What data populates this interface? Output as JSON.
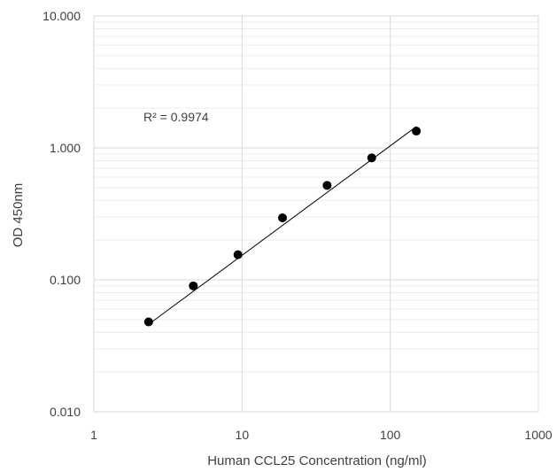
{
  "chart_data": {
    "type": "scatter",
    "title": "",
    "xlabel": "Human CCL25 Concentration (ng/ml)",
    "ylabel": "OD 450nm",
    "x_scale": "log",
    "y_scale": "log",
    "xlim": [
      1,
      1000
    ],
    "ylim": [
      0.01,
      10
    ],
    "x_ticks": [
      1,
      10,
      100,
      1000
    ],
    "x_tick_labels": [
      "1",
      "10",
      "100",
      "1000"
    ],
    "y_ticks": [
      0.01,
      0.1,
      1,
      10
    ],
    "y_tick_labels": [
      "0.010",
      "0.100",
      "1.000",
      "10.000"
    ],
    "grid": true,
    "legend": "none",
    "annotation": "R² = 0.9974",
    "series": [
      {
        "x": [
          2.34,
          4.69,
          9.38,
          18.75,
          37.5,
          75,
          150
        ],
        "y": [
          0.048,
          0.09,
          0.155,
          0.295,
          0.52,
          0.84,
          1.34
        ]
      }
    ],
    "trendline": {
      "type": "power",
      "x_range": [
        2.34,
        150
      ],
      "y_range": [
        0.046,
        1.45
      ]
    },
    "colors": {
      "points": "#000000",
      "trendline": "#000000",
      "major_grid": "#d9d9d9",
      "minor_grid": "#ececec",
      "text": "#404040"
    }
  }
}
